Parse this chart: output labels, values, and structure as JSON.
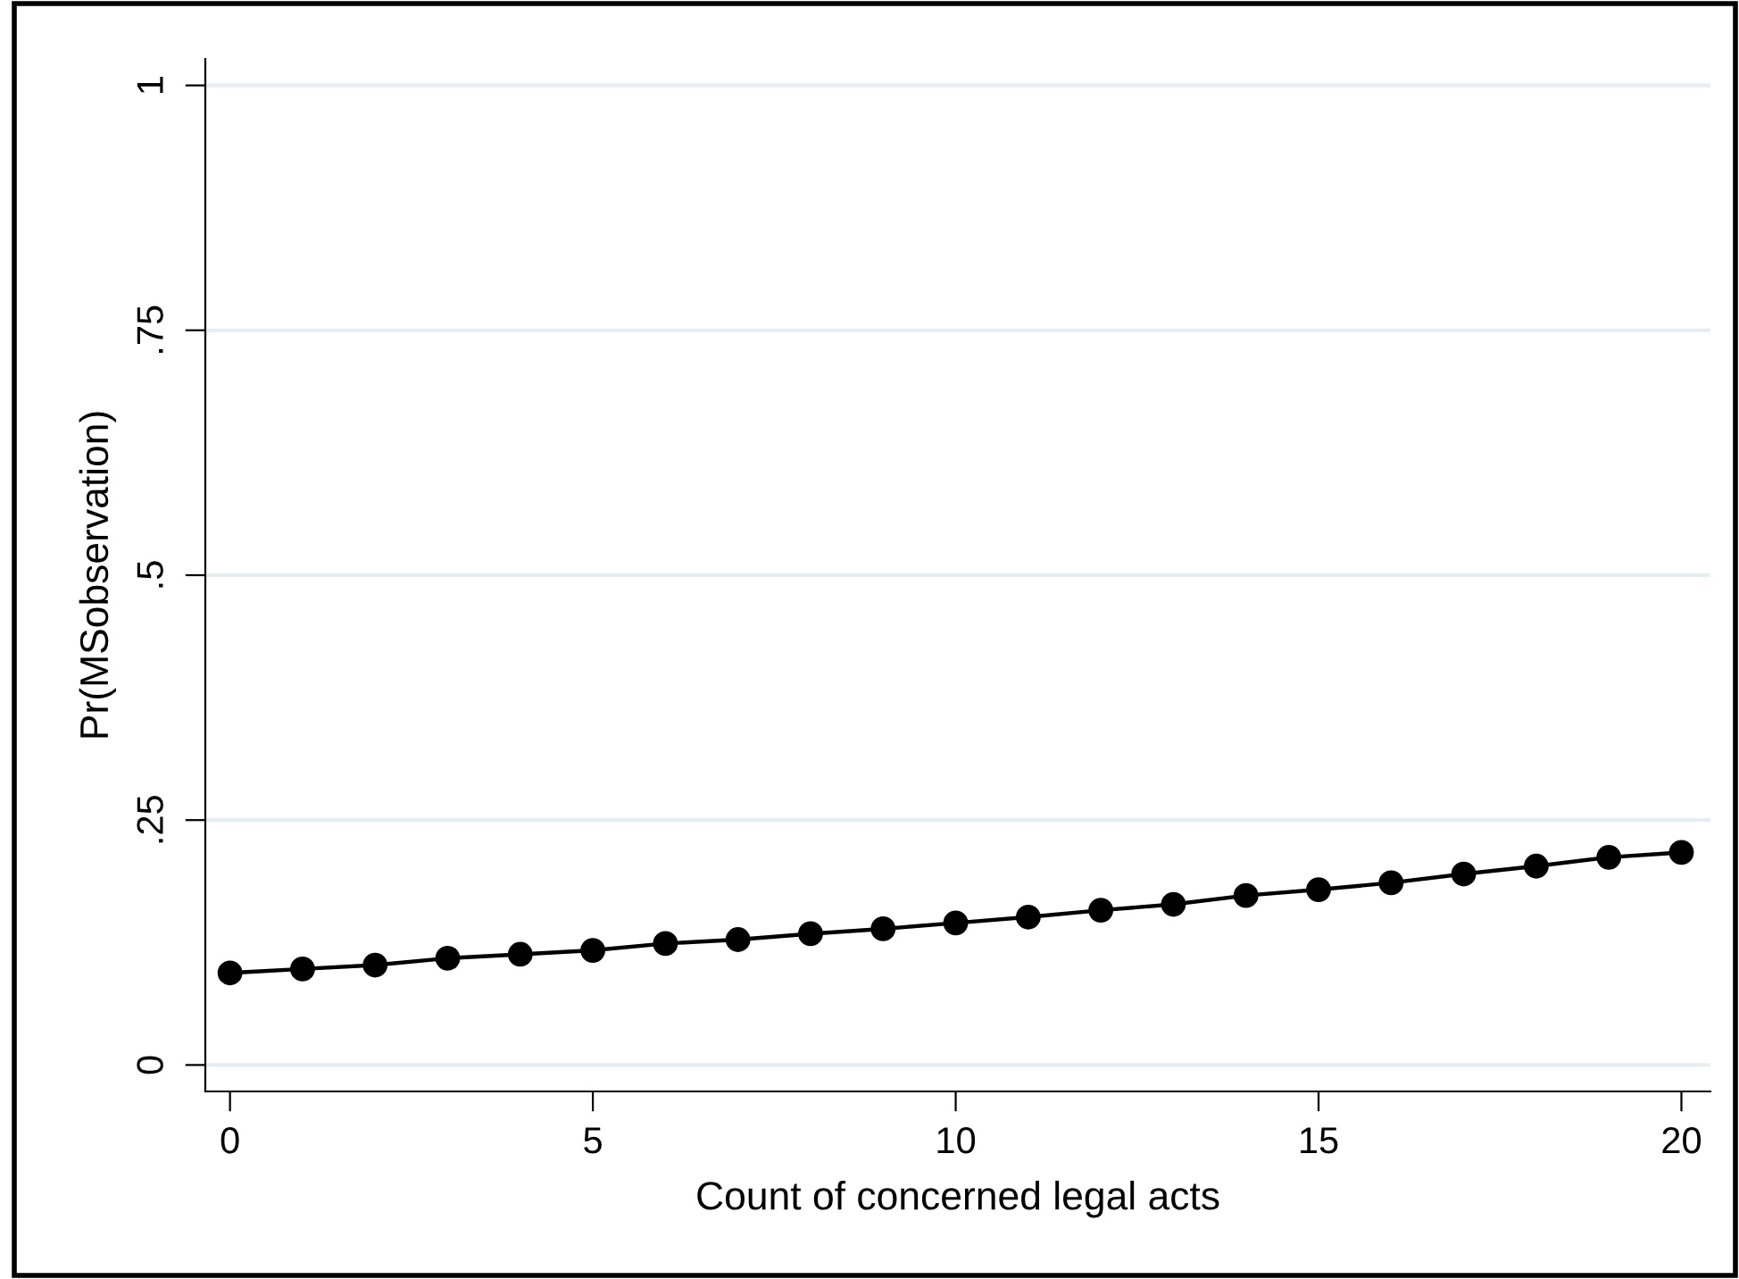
{
  "chart_data": {
    "type": "line",
    "xlabel": "Count of concerned legal acts",
    "ylabel": "Pr(MSobservation)",
    "x": [
      0,
      1,
      2,
      3,
      4,
      5,
      6,
      7,
      8,
      9,
      10,
      11,
      12,
      13,
      14,
      15,
      16,
      17,
      18,
      19,
      20
    ],
    "series": [
      {
        "color": "#000000",
        "values": [
          0.094,
          0.098,
          0.102,
          0.109,
          0.113,
          0.117,
          0.124,
          0.128,
          0.134,
          0.139,
          0.145,
          0.151,
          0.158,
          0.164,
          0.173,
          0.179,
          0.186,
          0.195,
          0.203,
          0.212,
          0.217
        ]
      }
    ],
    "marker": "circle",
    "line_style": "solid",
    "xlim": [
      -0.34,
      20.4
    ],
    "ylim": [
      -0.027,
      1.027
    ],
    "xticks": [
      0,
      5,
      10,
      15,
      20
    ],
    "yticks": [
      {
        "value": 0,
        "label": "0"
      },
      {
        "value": 0.25,
        "label": ".25"
      },
      {
        "value": 0.5,
        "label": ".5"
      },
      {
        "value": 0.75,
        "label": ".75"
      },
      {
        "value": 1,
        "label": "1"
      }
    ],
    "grid": "y",
    "legend": false
  }
}
